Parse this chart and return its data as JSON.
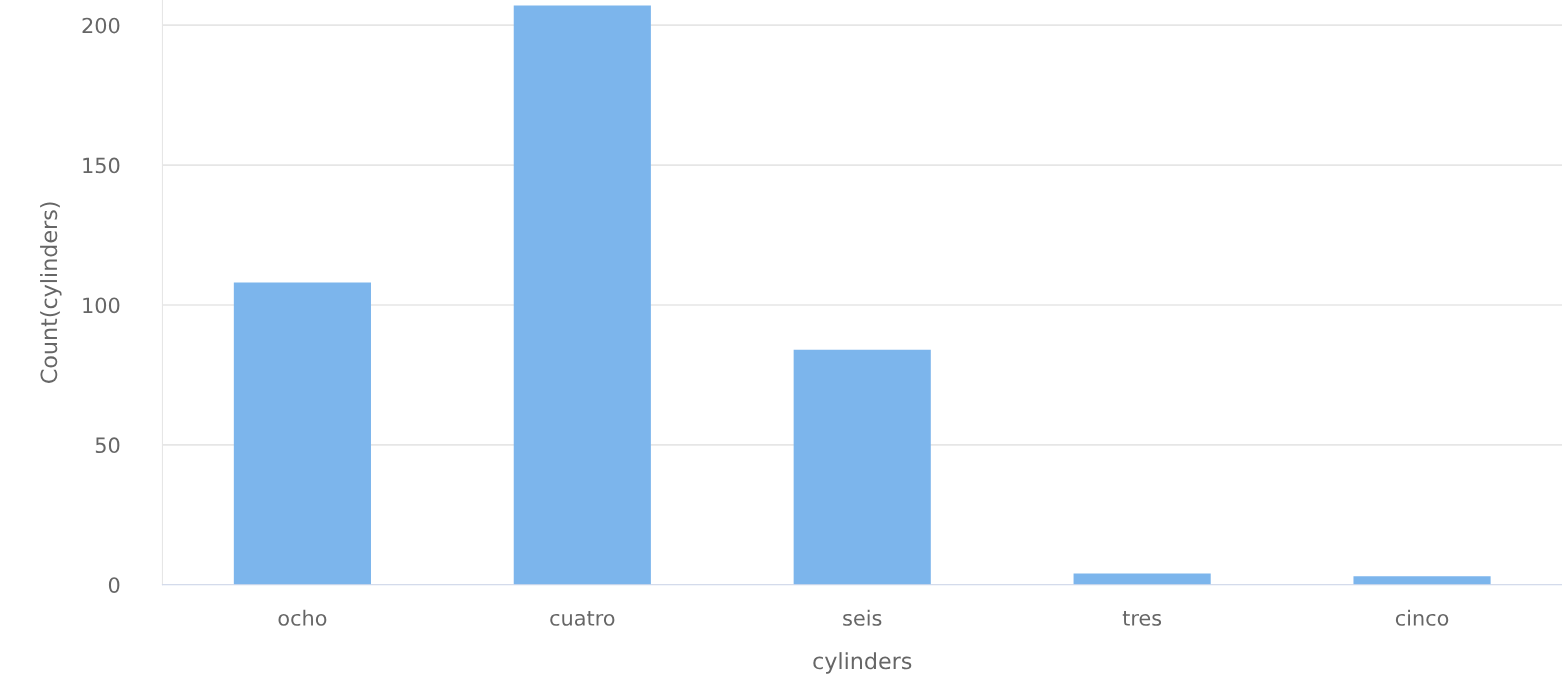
{
  "chart_data": {
    "type": "bar",
    "xlabel": "cylinders",
    "ylabel": "Count(cylinders)",
    "categories": [
      "ocho",
      "cuatro",
      "seis",
      "tres",
      "cinco"
    ],
    "values": [
      108,
      207,
      84,
      4,
      3
    ],
    "color": "#7cb5ec",
    "ylim": [
      0,
      209
    ],
    "yticks": [
      0,
      50,
      100,
      150,
      200
    ],
    "grid": "y",
    "legend": false
  }
}
